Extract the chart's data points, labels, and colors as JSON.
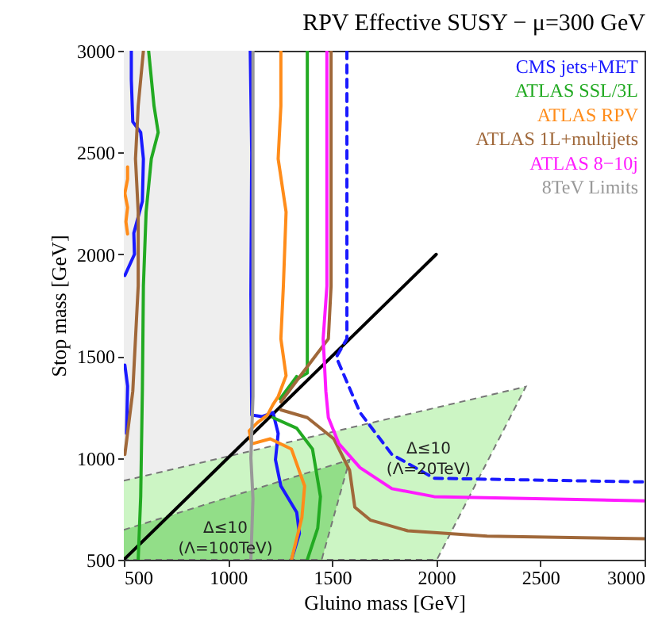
{
  "chart_data": {
    "type": "line",
    "title": "RPV Effective SUSY − μ=300 GeV",
    "xlabel": "Gluino mass [GeV]",
    "ylabel": "Stop mass [GeV]",
    "xlim": [
      500,
      3000
    ],
    "ylim": [
      500,
      3000
    ],
    "xticks": [
      500,
      1000,
      1500,
      2000,
      2500,
      3000
    ],
    "yticks": [
      500,
      1000,
      1500,
      2000,
      2500,
      3000
    ],
    "legend": "top right",
    "bands": [
      {
        "axis": "x",
        "from": 500,
        "to": 1120,
        "color": "#eeeeee"
      }
    ],
    "series": [
      {
        "type": "area",
        "color": "#ccf5c4",
        "x": [
          500,
          2430,
          2003,
          500
        ],
        "values": [
          888,
          1350,
          500,
          500
        ]
      },
      {
        "type": "area",
        "color": "#92de88",
        "x": [
          500,
          1584,
          1450,
          500
        ],
        "values": [
          647,
          991,
          500,
          500
        ]
      },
      {
        "color": "#000000",
        "x": [
          500,
          2000
        ],
        "values": [
          500,
          2000
        ]
      },
      {
        "color": "#1a1aff",
        "line_style": "dashed",
        "x": [
          1571,
          1571,
          1520,
          1634,
          1787,
          1990,
          3000
        ],
        "values": [
          3000,
          1585,
          1495,
          1223,
          1017,
          900,
          882
        ]
      },
      {
        "name": "CMS jets+MET",
        "color": "#1a1aff",
        "x": [
          536,
          536,
          543,
          581,
          594,
          589,
          548,
          551,
          505
        ],
        "values": [
          3000,
          2859,
          2651,
          2599,
          2469,
          2260,
          2104,
          2000,
          1896
        ]
      },
      {
        "color": "#1a1aff",
        "x": [
          505,
          518,
          513
        ],
        "values": [
          1456,
          1353,
          1120
        ]
      },
      {
        "color": "#1a1aff",
        "x": [
          1107,
          1114,
          1110,
          1114,
          1165,
          1216,
          1241,
          1228,
          1254,
          1330,
          1343,
          1305
        ],
        "values": [
          3000,
          2500,
          1800,
          1211,
          1203,
          1223,
          1120,
          991,
          862,
          733,
          629,
          500
        ]
      },
      {
        "name": "ATLAS SSL/3L",
        "color": "#22aa22",
        "x": [
          619,
          645,
          665,
          632,
          607,
          594,
          589,
          581,
          569
        ],
        "values": [
          3000,
          2729,
          2599,
          2469,
          2208,
          1844,
          1327,
          810,
          500
        ]
      },
      {
        "color": "#22aa22",
        "x": [
          1381,
          1381,
          1381,
          1317,
          1330,
          1250
        ],
        "values": [
          3000,
          2200,
          1417,
          1379,
          1400,
          1290
        ]
      },
      {
        "color": "#22aa22",
        "x": [
          1216,
          1330,
          1406,
          1444,
          1431,
          1381
        ],
        "values": [
          1198,
          1146,
          1043,
          810,
          655,
          500
        ]
      },
      {
        "name": "ATLAS RPV",
        "color": "#ff8c1a",
        "x": [
          518,
          518,
          505,
          518,
          510,
          518
        ],
        "values": [
          2430,
          2370,
          2300,
          2230,
          2160,
          2100
        ]
      },
      {
        "color": "#ff8c1a",
        "x": [
          1254,
          1254,
          1241,
          1279,
          1266,
          1254,
          1279,
          1241,
          1216,
          1190,
          1140,
          1102,
          1114,
          1203,
          1305,
          1368,
          1355,
          1305
        ],
        "values": [
          3000,
          2729,
          2469,
          2208,
          1844,
          1585,
          1404,
          1301,
          1262,
          1211,
          1172,
          1133,
          1069,
          1094,
          1043,
          862,
          707,
          500
        ]
      },
      {
        "name": "ATLAS 1L+multijets",
        "color": "#a0683a",
        "x": [
          594,
          569,
          556,
          569,
          569,
          543,
          505
        ],
        "values": [
          3000,
          2729,
          2469,
          2208,
          1844,
          1327,
          1017
        ]
      },
      {
        "color": "#a0683a",
        "x": [
          1495,
          1495,
          1482,
          1406,
          1330,
          1254
        ],
        "values": [
          3000,
          1844,
          1585,
          1482,
          1379,
          1275
        ]
      },
      {
        "color": "#a0683a",
        "x": [
          1254,
          1381,
          1508,
          1584,
          1609,
          1685,
          1863,
          2244,
          3000
        ],
        "values": [
          1236,
          1198,
          1094,
          939,
          758,
          694,
          642,
          616,
          603
        ]
      },
      {
        "name": "ATLAS 8−10j",
        "color": "#ff1aff",
        "x": [
          1475,
          1475,
          1457,
          1470,
          1482,
          1533,
          1634,
          1787,
          1990,
          3000
        ],
        "values": [
          3000,
          1844,
          1585,
          1327,
          1198,
          1069,
          952,
          849,
          810,
          789
        ]
      },
      {
        "name": "8TeV Limits",
        "color": "#999999",
        "x": [
          1120,
          1120,
          1110,
          1120,
          1110
        ],
        "values": [
          3000,
          1300,
          1000,
          800,
          500
        ]
      }
    ],
    "annotations": [
      "Δ≤10",
      "(Λ=20TeV)",
      "Δ≤10",
      "(Λ=100TeV)"
    ]
  }
}
